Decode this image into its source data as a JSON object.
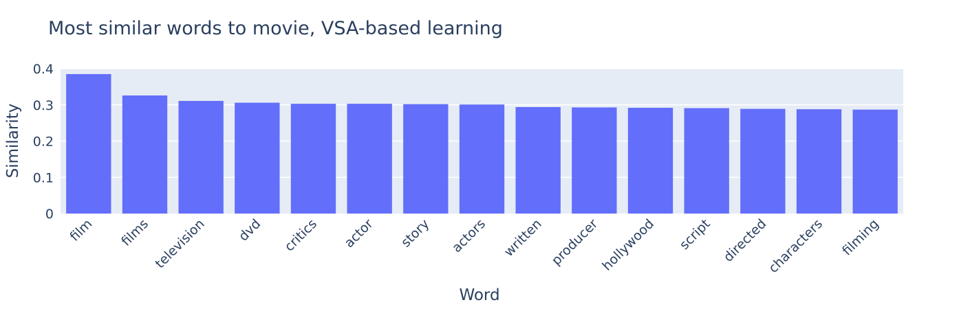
{
  "chart_data": {
    "type": "bar",
    "title": "Most similar words to movie, VSA-based learning",
    "xlabel": "Word",
    "ylabel": "Similarity",
    "categories": [
      "film",
      "films",
      "television",
      "dvd",
      "critics",
      "actor",
      "story",
      "actors",
      "written",
      "producer",
      "hollywood",
      "script",
      "directed",
      "characters",
      "filming"
    ],
    "values": [
      0.385,
      0.326,
      0.311,
      0.306,
      0.303,
      0.303,
      0.302,
      0.301,
      0.294,
      0.293,
      0.292,
      0.291,
      0.289,
      0.288,
      0.287
    ],
    "ylim": [
      0,
      0.4
    ],
    "yticks": [
      "0",
      "0.1",
      "0.2",
      "0.3",
      "0.4"
    ],
    "grid": true,
    "legend": "none",
    "colors": {
      "bar": "#636efa",
      "plot_bg": "#e5ecf6",
      "grid": "#ffffff",
      "text": "#2a3f5f"
    }
  }
}
